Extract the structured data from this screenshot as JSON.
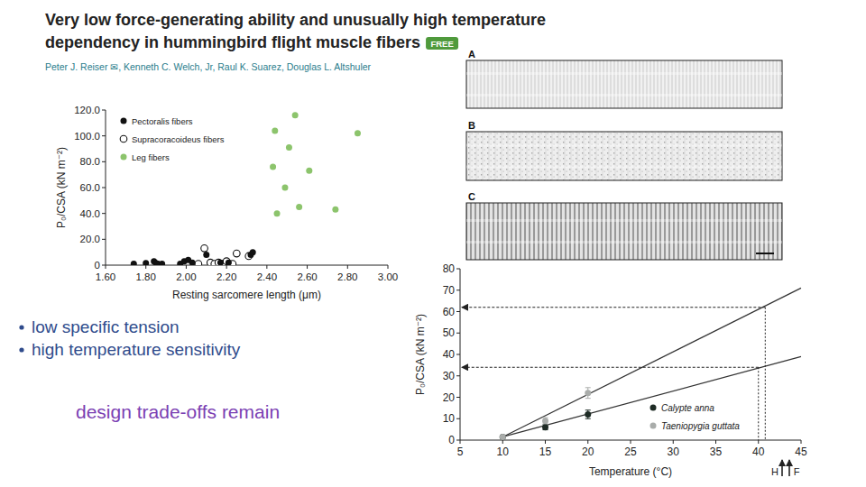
{
  "header": {
    "title_lines": [
      "Very low force-generating ability and unusually high temperature",
      "dependency in hummingbird flight muscle fibers"
    ],
    "badge": "FREE",
    "authors": "Peter J. Reiser ✉, Kenneth C. Welch, Jr, Raul K. Suarez, Douglas L. Altshuler"
  },
  "micrographs": {
    "labels": [
      "A",
      "B",
      "C"
    ]
  },
  "bullets": [
    "low specific tension",
    "high temperature sensitivity"
  ],
  "conclusion": "design trade-offs remain",
  "chart_data": [
    {
      "type": "scatter",
      "x_label": "Resting sarcomere length (μm)",
      "y_label": "P₀/CSA (kN m⁻²)",
      "xlim": [
        1.6,
        3.0
      ],
      "xticks": [
        {
          "value": 1.6,
          "label": "1.60"
        },
        {
          "value": 1.8,
          "label": "1.80"
        },
        {
          "value": 2,
          "label": "2.00"
        },
        {
          "value": 2.2,
          "label": "2.20"
        },
        {
          "value": 2.4,
          "label": "2.40"
        },
        {
          "value": 2.6,
          "label": "2.60"
        },
        {
          "value": 2.8,
          "label": "2.80"
        },
        {
          "value": 3,
          "label": "3.00"
        }
      ],
      "ylim": [
        0,
        120
      ],
      "yticks": [
        0,
        {
          "value": 20,
          "label": "20.0"
        },
        {
          "value": 40,
          "label": "40.0"
        },
        {
          "value": 60,
          "label": "60.0"
        },
        {
          "value": 80,
          "label": "80.0"
        },
        {
          "value": 100,
          "label": "100.0"
        },
        {
          "value": 120,
          "label": "120.0"
        }
      ],
      "grid": false,
      "legend": "upper left",
      "series": [
        {
          "name": "Pectoralis fibers",
          "color": "#111111",
          "marker": "circle",
          "x": [
            1.74,
            1.8,
            1.84,
            1.85,
            1.86,
            1.88,
            1.97,
            1.99,
            2.01,
            2.03,
            2.1,
            2.17,
            2.21,
            2.32,
            2.33
          ],
          "values": [
            1,
            1.5,
            3,
            1.5,
            1,
            1,
            1,
            3,
            4,
            2,
            8,
            2,
            2,
            8,
            10
          ]
        },
        {
          "name": "Supracoracoideus fibers",
          "color": "#111111",
          "marker": "open_circle",
          "x": [
            2.06,
            2.09,
            2.12,
            2.14,
            2.16,
            2.18,
            2.2,
            2.23,
            2.25,
            2.31
          ],
          "values": [
            1,
            13,
            2,
            1,
            2,
            1,
            3,
            1,
            9,
            7
          ]
        },
        {
          "name": "Leg fibers",
          "color": "#8cc46c",
          "marker": "circle",
          "x": [
            2.43,
            2.44,
            2.45,
            2.49,
            2.51,
            2.54,
            2.56,
            2.61,
            2.74,
            2.85
          ],
          "values": [
            76,
            104,
            40,
            60,
            91,
            116,
            45,
            73,
            43,
            102
          ]
        }
      ]
    },
    {
      "type": "line",
      "x_label": "Temperature (°C)",
      "y_label": "P₀/CSA (kN m⁻²)",
      "xlim": [
        5,
        45
      ],
      "xticks": [
        5,
        10,
        15,
        20,
        25,
        30,
        35,
        40,
        45
      ],
      "ylim": [
        0,
        80
      ],
      "yticks": [
        0,
        10,
        20,
        30,
        40,
        50,
        60,
        70,
        80
      ],
      "grid": false,
      "legend": "lower right",
      "series": [
        {
          "name": "Calypte anna",
          "color": "#1e2b25",
          "marker": "circle",
          "line_style": "solid",
          "x": [
            10,
            15,
            20
          ],
          "values": [
            1.5,
            6,
            12
          ],
          "errors": [
            0.5,
            1.2,
            2
          ],
          "fit_x": [
            10,
            45
          ],
          "fit_values": [
            1.5,
            39
          ]
        },
        {
          "name": "Taeniopygia guttata",
          "color": "#a9acaa",
          "marker": "circle",
          "line_style": "solid",
          "x": [
            10,
            15,
            20
          ],
          "values": [
            1.5,
            9,
            22
          ],
          "errors": [
            0.5,
            1.5,
            2.5
          ],
          "fit_x": [
            10,
            45
          ],
          "fit_values": [
            1.5,
            71
          ]
        }
      ],
      "reference_points": [
        {
          "x": 40,
          "y": 34
        },
        {
          "x": 40.8,
          "y": 62
        }
      ],
      "annotations": [
        "H",
        "F"
      ]
    }
  ]
}
